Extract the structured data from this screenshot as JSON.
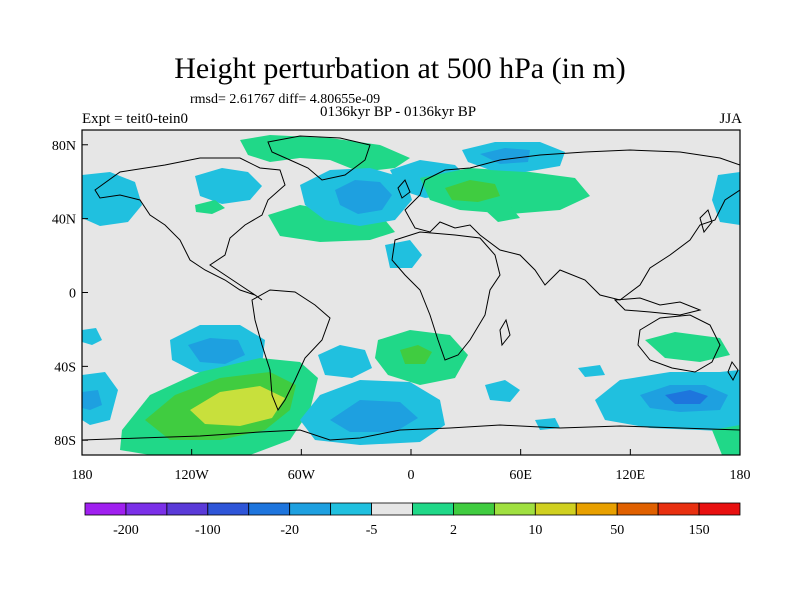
{
  "title": "Height perturbation at 500 hPa (in m)",
  "stats_text": "rmsd= 2.61767 diff= 4.80655e-09",
  "left_label": "Expt = teit0-tein0",
  "center_label": "0136kyr BP - 0136kyr BP",
  "right_label": "JJA",
  "lat_ticks": [
    {
      "value": 80,
      "label": "80N"
    },
    {
      "value": 40,
      "label": "40N"
    },
    {
      "value": 0,
      "label": "0"
    },
    {
      "value": -40,
      "label": "40S"
    },
    {
      "value": -80,
      "label": "80S"
    }
  ],
  "lon_ticks": [
    {
      "value": -180,
      "label": "180"
    },
    {
      "value": -120,
      "label": "120W"
    },
    {
      "value": -60,
      "label": "60W"
    },
    {
      "value": 0,
      "label": "0"
    },
    {
      "value": 60,
      "label": "60E"
    },
    {
      "value": 120,
      "label": "120E"
    },
    {
      "value": 180,
      "label": "180"
    }
  ],
  "colorbar": {
    "colors": [
      "#a020f0",
      "#7b30e8",
      "#5a3ad8",
      "#2e55d8",
      "#1e75dd",
      "#1ea0e0",
      "#20c0df",
      "#e6e6e6",
      "#20d888",
      "#40cc40",
      "#a0e040",
      "#d0d020",
      "#e8a000",
      "#e06000",
      "#e83010",
      "#e81010"
    ],
    "labels": [
      "-200",
      "-100",
      "-20",
      "-5",
      "2",
      "10",
      "50",
      "150"
    ]
  },
  "colors": {
    "land_outline": "#000000",
    "background_field": "#e6e6e6",
    "cyan": "#20c0df",
    "lightblue": "#1ea0e0",
    "blue": "#1e75dd",
    "green": "#20d888",
    "darkgreen": "#40cc40",
    "yellowgreen": "#a0e040",
    "olive": "#c8e03c"
  }
}
